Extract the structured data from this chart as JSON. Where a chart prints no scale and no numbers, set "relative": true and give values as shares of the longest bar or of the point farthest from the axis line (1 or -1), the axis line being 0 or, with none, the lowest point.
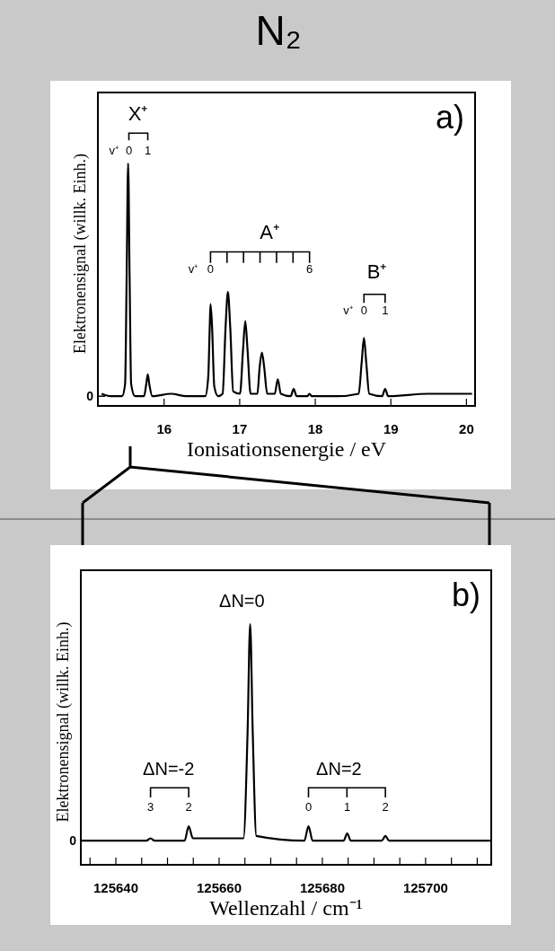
{
  "chart_data": [
    {
      "type": "line",
      "title": "N₂",
      "relative": true,
      "color": "#000000",
      "xlabel": "Ionisationsenergie / eV",
      "ylabel": "Elektronensignal (willk. Einh.)",
      "x": [
        15.18,
        15.3,
        15.45,
        15.49,
        15.51,
        15.53,
        15.55,
        15.57,
        15.62,
        15.74,
        15.77,
        15.79,
        15.81,
        15.85,
        16.1,
        16.3,
        16.55,
        16.59,
        16.61,
        16.62,
        16.64,
        16.67,
        16.72,
        16.78,
        16.82,
        16.85,
        16.88,
        16.92,
        17.01,
        17.05,
        17.08,
        17.11,
        17.15,
        17.24,
        17.27,
        17.3,
        17.33,
        17.37,
        17.47,
        17.51,
        17.55,
        17.68,
        17.72,
        17.76,
        17.9,
        17.93,
        17.96,
        18.3,
        18.58,
        18.62,
        18.65,
        18.68,
        18.72,
        18.89,
        18.93,
        18.97,
        19.5,
        20.08
      ],
      "values": [
        0.05,
        0.04,
        0.04,
        0.09,
        0.52,
        1.0,
        0.52,
        0.09,
        0.04,
        0.04,
        0.09,
        0.13,
        0.09,
        0.04,
        0.05,
        0.04,
        0.04,
        0.12,
        0.33,
        0.42,
        0.33,
        0.08,
        0.04,
        0.05,
        0.33,
        0.47,
        0.33,
        0.06,
        0.05,
        0.23,
        0.35,
        0.23,
        0.05,
        0.05,
        0.16,
        0.22,
        0.16,
        0.05,
        0.05,
        0.11,
        0.05,
        0.04,
        0.07,
        0.04,
        0.04,
        0.05,
        0.04,
        0.04,
        0.05,
        0.18,
        0.28,
        0.18,
        0.05,
        0.04,
        0.07,
        0.04,
        0.05,
        0.05
      ],
      "xlim": [
        15.13,
        20.12
      ],
      "xticks": [
        16,
        17,
        18,
        19,
        20
      ],
      "annotations": [
        "a)",
        "0",
        "X⁺",
        "v⁺",
        "0",
        "1",
        "A⁺",
        "v⁺",
        "0",
        "6",
        "B⁺",
        "v⁺",
        "0",
        "1"
      ]
    },
    {
      "type": "line",
      "relative": true,
      "color": "#000000",
      "xlabel": "Wellenzahl / cm⁻¹",
      "ylabel": "Elektronensignal (willk. Einh.)",
      "x": [
        125633.5,
        125646,
        125646.8,
        125647.6,
        125653.4,
        125654.2,
        125655,
        125664.8,
        125665.6,
        125666.1,
        125666.6,
        125667.3,
        125676.6,
        125677.4,
        125678.2,
        125684.2,
        125684.9,
        125685.6,
        125691.6,
        125692.3,
        125693,
        125712.6
      ],
      "values": [
        0.1,
        0.1,
        0.11,
        0.1,
        0.1,
        0.16,
        0.11,
        0.11,
        0.55,
        1.0,
        0.55,
        0.12,
        0.1,
        0.16,
        0.1,
        0.1,
        0.13,
        0.1,
        0.1,
        0.12,
        0.1,
        0.1
      ],
      "xlim": [
        125633.3,
        125712.8
      ],
      "xticks": [
        {
          "value": 125635,
          "label": null
        },
        125640,
        {
          "value": 125645,
          "label": null
        },
        {
          "value": 125650,
          "label": null
        },
        {
          "value": 125655,
          "label": null
        },
        125660,
        {
          "value": 125665,
          "label": null
        },
        {
          "value": 125670,
          "label": null
        },
        {
          "value": 125675,
          "label": null
        },
        125680,
        {
          "value": 125685,
          "label": null
        },
        {
          "value": 125690,
          "label": null
        },
        {
          "value": 125695,
          "label": null
        },
        125700,
        {
          "value": 125705,
          "label": null
        },
        {
          "value": 125710,
          "label": null
        }
      ],
      "annotations": [
        "b)",
        "0",
        "ΔN=0",
        "ΔN=-2",
        "3",
        "2",
        "ΔN=2",
        "0",
        "1",
        "2"
      ]
    }
  ]
}
